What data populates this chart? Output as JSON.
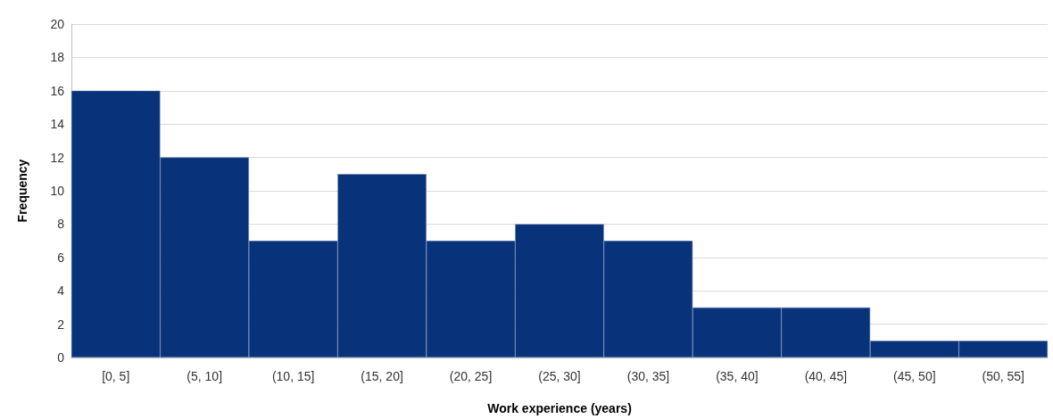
{
  "chart_data": {
    "type": "bar",
    "xlabel": "Work experience (years)",
    "ylabel": "Frequency",
    "categories": [
      "[0, 5]",
      "(5, 10]",
      "(10, 15]",
      "(15, 20]",
      "(20, 25]",
      "(25, 30]",
      "(30, 35]",
      "(35, 40]",
      "(40, 45]",
      "(45, 50]",
      "(50, 55]"
    ],
    "values": [
      16,
      12,
      7,
      11,
      7,
      8,
      7,
      3,
      3,
      1,
      1
    ],
    "color": "#08327a",
    "ylim": [
      0,
      20
    ],
    "yticks": [
      0,
      2,
      4,
      6,
      8,
      10,
      12,
      14,
      16,
      18,
      20
    ],
    "grid": "y"
  }
}
